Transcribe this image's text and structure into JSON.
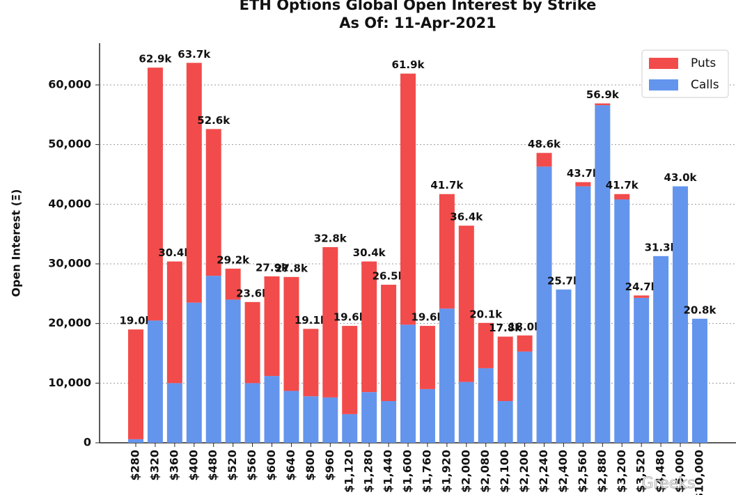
{
  "chart_data": {
    "type": "stacked_bar",
    "title": "ETH Options Global Open Interest by Strike",
    "subtitle": "As Of: 11-Apr-2021",
    "y_label": "Open Interest (Ξ)",
    "watermark": "Greeks",
    "categories": [
      "$280",
      "$320",
      "$360",
      "$400",
      "$480",
      "$520",
      "$560",
      "$600",
      "$640",
      "$800",
      "$960",
      "$1,120",
      "$1,280",
      "$1,440",
      "$1,600",
      "$1,760",
      "$1,920",
      "$2,000",
      "$2,080",
      "$2,100",
      "$2,200",
      "$2,240",
      "$2,400",
      "$2,560",
      "$2,880",
      "$3,200",
      "$3,520",
      "$4,480",
      "$5,000",
      "$10,000"
    ],
    "series": [
      {
        "name": "Calls",
        "color": "#6495ed",
        "values": [
          600,
          20500,
          10000,
          23500,
          28000,
          24000,
          10000,
          11200,
          8700,
          7800,
          7600,
          4800,
          8500,
          7000,
          19800,
          9000,
          22500,
          10200,
          12500,
          7000,
          15300,
          46300,
          25700,
          43000,
          56600,
          40800,
          24300,
          31300,
          43000,
          20800
        ]
      },
      {
        "name": "Puts",
        "color": "#f24b4b",
        "values": [
          18400,
          42400,
          20400,
          40200,
          24600,
          5200,
          13600,
          16700,
          19100,
          11300,
          25200,
          14800,
          21900,
          19500,
          42100,
          10600,
          19200,
          26200,
          7600,
          10800,
          2700,
          2300,
          0,
          700,
          300,
          900,
          400,
          0,
          0,
          0
        ]
      }
    ],
    "total_labels": [
      "19.0k",
      "62.9k",
      "30.4k",
      "63.7k",
      "52.6k",
      "29.2k",
      "23.6k",
      "27.9k",
      "27.8k",
      "19.1k",
      "32.8k",
      "19.6k",
      "30.4k",
      "26.5k",
      "61.9k",
      "19.6k",
      "41.7k",
      "36.4k",
      "20.1k",
      "17.8k",
      "18.0k",
      "48.6k",
      "25.7k",
      "43.7k",
      "56.9k",
      "41.7k",
      "24.7k",
      "31.3k",
      "43.0k",
      "20.8k"
    ],
    "ylim": [
      0,
      67000
    ],
    "yticks": [
      0,
      {
        "value": 10000,
        "label": "10,000"
      },
      {
        "value": 20000,
        "label": "20,000"
      },
      {
        "value": 30000,
        "label": "30,000"
      },
      {
        "value": 40000,
        "label": "40,000"
      },
      {
        "value": 50000,
        "label": "50,000"
      },
      {
        "value": 60000,
        "label": "60,000"
      }
    ],
    "grid": true,
    "legend": "upper right"
  }
}
